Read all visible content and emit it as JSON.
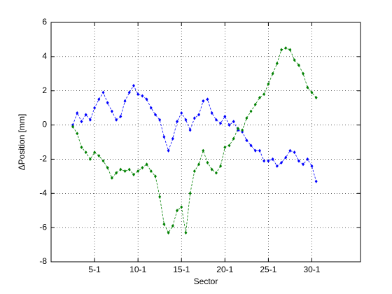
{
  "chart_data": {
    "type": "line",
    "x_label": "Sector",
    "y_label": "ΔPosition [mm]",
    "x": [
      2.5,
      3,
      3.5,
      4,
      4.5,
      5,
      5.5,
      6,
      6.5,
      7,
      7.5,
      8,
      8.5,
      9,
      9.5,
      10,
      10.5,
      11,
      11.5,
      12,
      12.5,
      13,
      13.5,
      14,
      14.5,
      15,
      15.5,
      16,
      16.5,
      17,
      17.5,
      18,
      18.5,
      19,
      19.5,
      20,
      20.5,
      21,
      21.5,
      22,
      22.5,
      23,
      23.5,
      24,
      24.5,
      25,
      25.5,
      26,
      26.5,
      27,
      27.5,
      28,
      28.5,
      29,
      29.5,
      30,
      30.5
    ],
    "series": [
      {
        "color": "#0000ff",
        "values": [
          0.0,
          0.7,
          0.2,
          0.6,
          0.3,
          1.0,
          1.5,
          1.9,
          1.3,
          0.8,
          0.3,
          0.5,
          1.4,
          1.9,
          2.3,
          1.8,
          1.7,
          1.5,
          1.0,
          0.6,
          0.3,
          -0.7,
          -1.5,
          -0.8,
          0.2,
          0.7,
          0.3,
          -0.3,
          0.4,
          0.6,
          1.4,
          1.5,
          0.7,
          0.3,
          0.1,
          0.5,
          0.0,
          0.2,
          -0.3,
          -0.4,
          -0.9,
          -1.2,
          -1.5,
          -1.5,
          -2.1,
          -2.1,
          -2.0,
          -2.4,
          -2.2,
          -1.9,
          -1.5,
          -1.6,
          -2.1,
          -2.3,
          -2.0,
          -2.4,
          -3.3
        ]
      },
      {
        "color": "#008000",
        "values": [
          -0.1,
          -0.5,
          -1.3,
          -1.6,
          -2.0,
          -1.6,
          -1.8,
          -2.1,
          -2.5,
          -3.1,
          -2.8,
          -2.6,
          -2.7,
          -2.6,
          -2.9,
          -2.7,
          -2.5,
          -2.3,
          -2.7,
          -3.0,
          -4.2,
          -5.8,
          -6.3,
          -5.9,
          -5.0,
          -4.8,
          -6.3,
          -4.0,
          -2.7,
          -2.3,
          -1.5,
          -2.2,
          -2.6,
          -2.8,
          -2.4,
          -1.3,
          -1.2,
          -0.8,
          -0.2,
          -0.3,
          0.4,
          0.8,
          1.2,
          1.6,
          1.8,
          2.4,
          3.0,
          3.6,
          4.4,
          4.5,
          4.4,
          3.8,
          3.5,
          3.0,
          2.2,
          1.9,
          1.6
        ]
      }
    ],
    "xlim": [
      0,
      35.6
    ],
    "xticks": [
      {
        "value": 5,
        "label": "5-1"
      },
      {
        "value": 10,
        "label": "10-1"
      },
      {
        "value": 15,
        "label": "15-1"
      },
      {
        "value": 20,
        "label": "20-1"
      },
      {
        "value": 25,
        "label": "25-1"
      },
      {
        "value": 30,
        "label": "30-1"
      }
    ],
    "ylim": [
      -8,
      6
    ],
    "yticks": [
      -8,
      -6,
      -4,
      -2,
      0,
      2,
      4,
      6
    ],
    "grid": true
  }
}
